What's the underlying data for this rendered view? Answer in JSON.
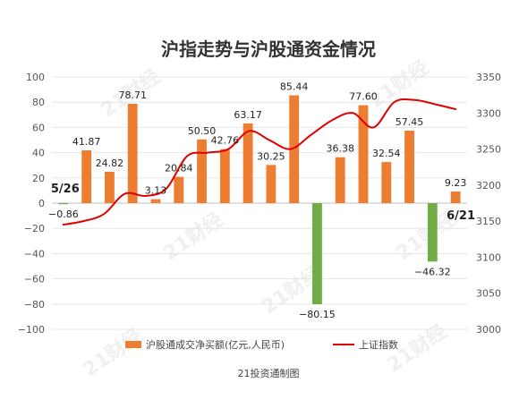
{
  "chart_data": {
    "type": "bar+line",
    "title": "沪指走势与沪股通资金情况",
    "credit": "21投资通制图",
    "watermark": "21财经",
    "left_axis": {
      "min": -100,
      "max": 100,
      "step": 20
    },
    "right_axis": {
      "min": 3000,
      "max": 3350,
      "step": 50
    },
    "bar_series": {
      "name": "沪股通成交净买额(亿元,人民币)",
      "values": [
        -0.86,
        41.87,
        24.82,
        78.71,
        3.13,
        20.84,
        50.5,
        42.76,
        63.17,
        30.25,
        85.44,
        -80.15,
        36.38,
        77.6,
        32.54,
        57.45,
        -46.32,
        9.23
      ],
      "labels": [
        "−0.86",
        "41.87",
        "24.82",
        "78.71",
        "3.13",
        "20.84",
        "50.50",
        "42.76",
        "63.17",
        "30.25",
        "85.44",
        "−80.15",
        "36.38",
        "77.60",
        "32.54",
        "57.45",
        "−46.32",
        "9.23"
      ],
      "positive_color": "#ED7D31",
      "negative_color": "#70AD47"
    },
    "line_series": {
      "name": "上证指数",
      "color": "#E00000",
      "values": [
        3145,
        3150,
        3160,
        3188,
        3185,
        3195,
        3240,
        3245,
        3250,
        3275,
        3262,
        3250,
        3270,
        3290,
        3300,
        3280,
        3315,
        3318,
        3312,
        3305
      ]
    },
    "date_labels": {
      "start": "5/26",
      "end": "6/21"
    },
    "legend_position": "bottom"
  }
}
